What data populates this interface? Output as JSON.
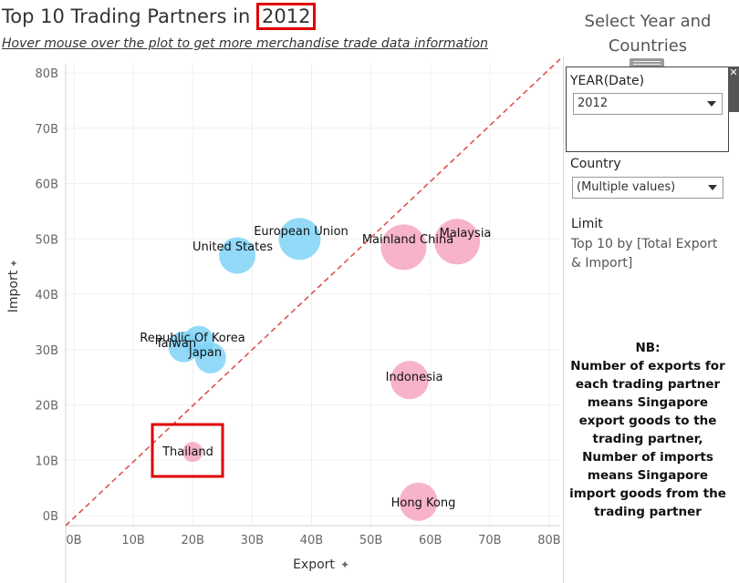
{
  "header": {
    "title_prefix": "Top 10 Trading Partners in",
    "title_year": "2012",
    "subtitle": "Hover mouse over the plot to get more  merchandise  trade data information"
  },
  "panel": {
    "title": "Select Year and Countries",
    "year_label": "YEAR(Date)",
    "year_value": "2012",
    "country_label": "Country",
    "country_value": "(Multiple values)",
    "limit_label": "Limit",
    "limit_value": "Top 10 by [Total Export & Import]",
    "nb_lines": [
      "NB:",
      "Number of exports for",
      "each trading partner",
      "means Singapore",
      "export goods to the",
      "trading partner,",
      "Number of imports",
      "means Singapore",
      "import goods from the",
      "trading partner"
    ]
  },
  "chart_data": {
    "type": "scatter",
    "title": "Top 10 Trading Partners in 2012",
    "xlabel": "Export",
    "ylabel": "Import",
    "xlim": [
      0,
      80
    ],
    "ylim": [
      0,
      80
    ],
    "x_ticks": [
      "0B",
      "10B",
      "20B",
      "30B",
      "40B",
      "50B",
      "60B",
      "70B",
      "80B"
    ],
    "y_ticks": [
      "0B",
      "10B",
      "20B",
      "30B",
      "40B",
      "50B",
      "60B",
      "70B",
      "80B"
    ],
    "grid": true,
    "reference_line": "y = x (dashed)",
    "colors": {
      "export_dominant": "#f4a6c0",
      "import_dominant": "#7fd3f7",
      "reference": "#e05050",
      "highlight": "#e00000"
    },
    "points": [
      {
        "name": "Malaysia",
        "x": 64.5,
        "y": 49.5,
        "group": "export_dominant"
      },
      {
        "name": "Mainland China",
        "x": 55.5,
        "y": 48.5,
        "group": "export_dominant"
      },
      {
        "name": "Indonesia",
        "x": 56.5,
        "y": 24.5,
        "group": "export_dominant"
      },
      {
        "name": "Hong Kong",
        "x": 58.0,
        "y": 2.5,
        "group": "export_dominant"
      },
      {
        "name": "Thailand",
        "x": 20.0,
        "y": 11.5,
        "group": "export_dominant",
        "highlighted": true
      },
      {
        "name": "European Union",
        "x": 38.0,
        "y": 50.0,
        "group": "import_dominant"
      },
      {
        "name": "United States",
        "x": 27.5,
        "y": 47.0,
        "group": "import_dominant"
      },
      {
        "name": "Republic Of Korea",
        "x": 21.0,
        "y": 31.5,
        "group": "import_dominant"
      },
      {
        "name": "Taiwan",
        "x": 18.5,
        "y": 30.5,
        "group": "import_dominant"
      },
      {
        "name": "Japan",
        "x": 23.0,
        "y": 28.5,
        "group": "import_dominant"
      }
    ]
  }
}
